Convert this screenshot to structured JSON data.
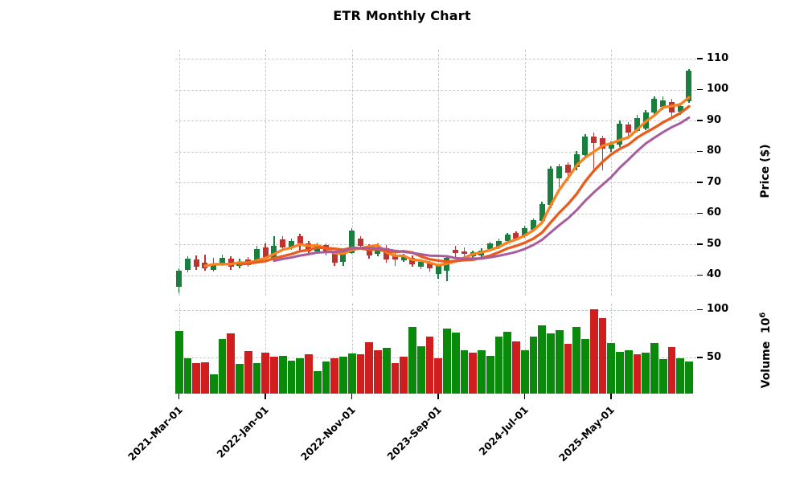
{
  "chart_data": {
    "type": "candlestick+volume",
    "title": "ETR Monthly Chart",
    "price_axis": {
      "label": "Price ($)",
      "ticks": [
        40,
        50,
        60,
        70,
        80,
        90,
        100,
        110
      ],
      "range": [
        33,
        113
      ],
      "side": "right"
    },
    "volume_axis": {
      "label": "Volume",
      "multiplier_base": "10",
      "multiplier_exp": "6",
      "ticks": [
        50,
        100
      ],
      "range": [
        12,
        106
      ],
      "side": "right"
    },
    "x_axis": {
      "tick_indices": [
        0,
        10,
        20,
        30,
        40,
        50
      ],
      "tick_labels": [
        "2021-Mar-01",
        "2022-Jan-01",
        "2022-Nov-01",
        "2023-Sep-01",
        "2024-Jul-01",
        "2025-May-01"
      ],
      "label_rotation_deg": 45
    },
    "grid": "dashed",
    "legend": "none",
    "mav": {
      "windows": [
        4,
        8,
        12
      ]
    },
    "columns": [
      "date",
      "open",
      "high",
      "low",
      "close",
      "volume_millions",
      "volume_color"
    ],
    "candles": [
      [
        "2021-03",
        36.2,
        42.2,
        34.2,
        41.4,
        78,
        "up"
      ],
      [
        "2021-04",
        41.8,
        46.0,
        41.0,
        45.3,
        49,
        "up"
      ],
      [
        "2021-05",
        45.0,
        46.3,
        41.8,
        42.8,
        44,
        "down"
      ],
      [
        "2021-06",
        44.0,
        46.6,
        41.4,
        42.3,
        45,
        "down"
      ],
      [
        "2021-07",
        41.8,
        45.7,
        41.2,
        43.6,
        32,
        "up"
      ],
      [
        "2021-08",
        43.6,
        46.6,
        43.0,
        45.5,
        69,
        "up"
      ],
      [
        "2021-09",
        45.3,
        46.2,
        41.8,
        42.8,
        75,
        "down"
      ],
      [
        "2021-10",
        42.9,
        45.2,
        42.2,
        44.4,
        43,
        "up"
      ],
      [
        "2021-11",
        45.0,
        45.8,
        42.6,
        43.3,
        57,
        "down"
      ],
      [
        "2021-12",
        44.4,
        49.4,
        43.8,
        48.5,
        44,
        "up"
      ],
      [
        "2022-01",
        49.0,
        50.2,
        45.0,
        45.9,
        55,
        "down"
      ],
      [
        "2022-02",
        45.5,
        52.7,
        44.9,
        49.6,
        51,
        "down"
      ],
      [
        "2022-03",
        51.6,
        52.6,
        48.3,
        48.9,
        52,
        "up"
      ],
      [
        "2022-04",
        48.9,
        51.8,
        48.2,
        51.1,
        47,
        "up"
      ],
      [
        "2022-05",
        52.6,
        53.3,
        47.8,
        50.2,
        49,
        "up"
      ],
      [
        "2022-06",
        50.3,
        51.0,
        46.8,
        47.6,
        53,
        "down"
      ],
      [
        "2022-07",
        47.6,
        50.4,
        46.9,
        49.7,
        36,
        "up"
      ],
      [
        "2022-08",
        49.7,
        50.3,
        46.4,
        47.1,
        46,
        "up"
      ],
      [
        "2022-09",
        47.1,
        47.9,
        43.1,
        44.0,
        49,
        "down"
      ],
      [
        "2022-10",
        44.3,
        48.0,
        42.9,
        47.0,
        51,
        "up"
      ],
      [
        "2022-11",
        47.2,
        55.3,
        46.8,
        54.4,
        54,
        "up"
      ],
      [
        "2022-12",
        51.7,
        52.5,
        48.8,
        49.4,
        53,
        "down"
      ],
      [
        "2023-01",
        49.4,
        49.9,
        45.4,
        46.3,
        66,
        "down"
      ],
      [
        "2023-02",
        46.8,
        50.2,
        46.2,
        48.5,
        58,
        "down"
      ],
      [
        "2023-03",
        48.8,
        49.8,
        44.0,
        45.1,
        60,
        "up"
      ],
      [
        "2023-04",
        46.6,
        47.7,
        43.0,
        45.1,
        44,
        "down"
      ],
      [
        "2023-05",
        44.9,
        47.0,
        44.2,
        46.2,
        51,
        "down"
      ],
      [
        "2023-06",
        45.7,
        46.3,
        42.8,
        43.4,
        82,
        "up"
      ],
      [
        "2023-07",
        42.7,
        44.9,
        42.0,
        44.2,
        62,
        "up"
      ],
      [
        "2023-08",
        43.9,
        44.5,
        41.2,
        42.2,
        72,
        "down"
      ],
      [
        "2023-09",
        40.4,
        43.6,
        38.9,
        43.0,
        49,
        "down"
      ],
      [
        "2023-10",
        41.5,
        46.0,
        38.1,
        45.5,
        80,
        "up"
      ],
      [
        "2023-11",
        48.2,
        49.5,
        45.8,
        47.2,
        76,
        "up"
      ],
      [
        "2023-12",
        47.6,
        49.0,
        45.6,
        47.0,
        58,
        "up"
      ],
      [
        "2024-01",
        46.1,
        48.0,
        45.2,
        47.3,
        55,
        "down"
      ],
      [
        "2024-02",
        46.4,
        48.6,
        45.8,
        48.0,
        58,
        "up"
      ],
      [
        "2024-03",
        48.4,
        50.8,
        47.8,
        50.2,
        52,
        "up"
      ],
      [
        "2024-04",
        49.3,
        51.7,
        48.5,
        51.0,
        72,
        "up"
      ],
      [
        "2024-05",
        51.0,
        53.7,
        50.4,
        53.0,
        77,
        "up"
      ],
      [
        "2024-06",
        53.6,
        54.2,
        51.2,
        51.9,
        67,
        "down"
      ],
      [
        "2024-07",
        52.7,
        55.9,
        52.0,
        55.3,
        58,
        "up"
      ],
      [
        "2024-08",
        54.8,
        58.4,
        54.2,
        57.8,
        72,
        "up"
      ],
      [
        "2024-09",
        57.4,
        63.8,
        56.8,
        63.0,
        84,
        "up"
      ],
      [
        "2024-10",
        62.6,
        75.3,
        61.8,
        74.4,
        75,
        "up"
      ],
      [
        "2024-11",
        71.4,
        76.1,
        68.5,
        75.3,
        79,
        "up"
      ],
      [
        "2024-12",
        75.7,
        76.6,
        70.5,
        73.1,
        64,
        "down"
      ],
      [
        "2025-01",
        74.9,
        80.2,
        74.0,
        79.1,
        82,
        "up"
      ],
      [
        "2025-02",
        78.7,
        85.6,
        77.8,
        84.7,
        69,
        "up"
      ],
      [
        "2025-03",
        84.9,
        86.0,
        73.6,
        82.6,
        101,
        "down"
      ],
      [
        "2025-04",
        84.4,
        85.0,
        74.0,
        80.9,
        91,
        "down"
      ],
      [
        "2025-05",
        80.9,
        83.2,
        79.8,
        82.2,
        65,
        "up"
      ],
      [
        "2025-06",
        82.2,
        89.9,
        81.5,
        89.0,
        56,
        "up"
      ],
      [
        "2025-07",
        88.7,
        89.6,
        84.4,
        86.1,
        58,
        "up"
      ],
      [
        "2025-08",
        86.7,
        91.7,
        86.0,
        90.9,
        53,
        "down"
      ],
      [
        "2025-09",
        87.4,
        93.5,
        86.8,
        92.6,
        55,
        "up"
      ],
      [
        "2025-10",
        92.6,
        97.8,
        91.7,
        96.9,
        65,
        "up"
      ],
      [
        "2025-11",
        94.5,
        97.8,
        93.5,
        96.6,
        48,
        "up"
      ],
      [
        "2025-12",
        96.0,
        96.9,
        90.8,
        92.6,
        61,
        "down"
      ],
      [
        "2026-01",
        92.8,
        95.7,
        91.9,
        94.7,
        49,
        "up"
      ],
      [
        "2026-02",
        96.3,
        106.6,
        95.8,
        106.0,
        46,
        "up"
      ]
    ],
    "colors": {
      "candle_up": "#1a7e3e",
      "candle_down": "#bd3330",
      "volume_up": "#0a8a0a",
      "volume_down": "#d01d1d",
      "mav": [
        "#f9811f",
        "#ea5c1c",
        "#a85c9e"
      ],
      "grid": "#c9c9c9",
      "text": "#000000",
      "background": "#ffffff"
    }
  }
}
